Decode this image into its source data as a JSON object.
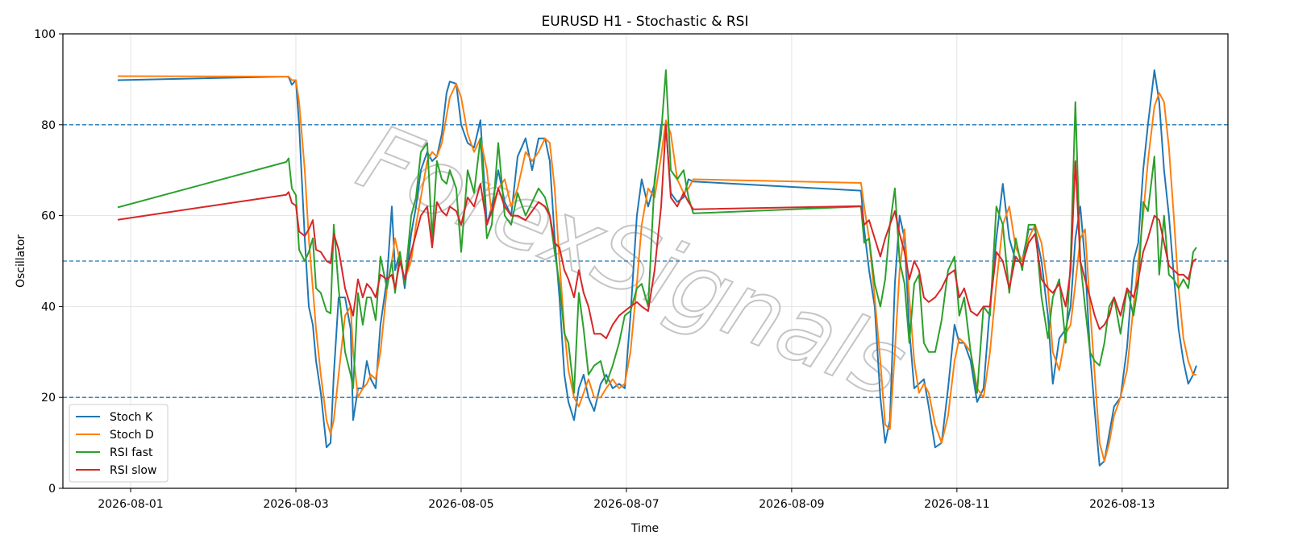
{
  "chart_data": {
    "type": "line",
    "title": "EURUSD H1 - Stochastic & RSI",
    "xlabel": "Time",
    "ylabel": "Oscillator",
    "watermark": "ForexSignals",
    "x": [
      20665.844,
      20667.883,
      20667.912,
      20667.951,
      20668.0,
      20668.039,
      20668.107,
      20668.156,
      20668.205,
      20668.244,
      20668.302,
      20668.371,
      20668.42,
      20668.459,
      20668.517,
      20668.595,
      20668.663,
      20668.693,
      20668.751,
      20668.81,
      20668.859,
      20668.907,
      20668.966,
      20669.024,
      20669.102,
      20669.161,
      20669.2,
      20669.259,
      20669.317,
      20669.395,
      20669.454,
      20669.512,
      20669.59,
      20669.649,
      20669.707,
      20669.766,
      20669.824,
      20669.863,
      20669.941,
      20670.0,
      20670.078,
      20670.156,
      20670.234,
      20670.312,
      20670.371,
      20670.449,
      20670.527,
      20670.605,
      20670.683,
      20670.78,
      20670.859,
      20670.937,
      20671.015,
      20671.073,
      20671.132,
      20671.19,
      20671.249,
      20671.298,
      20671.366,
      20671.424,
      20671.483,
      20671.541,
      20671.61,
      20671.688,
      20671.756,
      20671.834,
      20671.912,
      20671.98,
      20672.049,
      20672.127,
      20672.185,
      20672.263,
      20672.341,
      20672.42,
      20672.478,
      20672.537,
      20672.615,
      20672.693,
      20672.751,
      20672.81,
      20674.839,
      20674.878,
      20674.937,
      20675.005,
      20675.073,
      20675.132,
      20675.19,
      20675.249,
      20675.307,
      20675.366,
      20675.424,
      20675.483,
      20675.541,
      20675.6,
      20675.659,
      20675.737,
      20675.815,
      20675.893,
      20675.971,
      20676.029,
      20676.088,
      20676.166,
      20676.244,
      20676.322,
      20676.4,
      20676.478,
      20676.556,
      20676.634,
      20676.712,
      20676.79,
      20676.868,
      20676.946,
      20677.024,
      20677.102,
      20677.161,
      20677.239,
      20677.317,
      20677.376,
      20677.434,
      20677.493,
      20677.551,
      20677.61,
      20677.668,
      20677.727,
      20677.785,
      20677.844,
      20677.902,
      20677.98,
      20678.059,
      20678.137,
      20678.195,
      20678.254,
      20678.312,
      20678.39,
      20678.449,
      20678.507,
      20678.566,
      20678.624,
      20678.683,
      20678.741,
      20678.8,
      20678.859,
      20678.898
    ],
    "series": [
      {
        "name": "Stoch K",
        "color": "#1f77b4",
        "values": [
          89.8,
          90.6,
          90.5,
          88.8,
          89.8,
          80,
          55,
          40,
          36,
          28,
          21,
          9,
          10,
          25,
          42,
          42,
          35,
          15,
          22,
          22,
          28,
          24,
          22,
          36,
          46,
          62,
          48,
          52,
          44,
          56,
          62,
          70,
          74,
          72,
          73,
          78,
          87,
          89.5,
          89,
          80,
          76,
          75,
          81,
          58,
          62,
          70,
          63,
          60,
          73,
          77,
          70,
          77,
          77,
          72,
          55,
          42,
          25,
          19,
          15,
          22,
          25,
          20,
          17,
          23,
          25,
          22,
          23,
          22,
          38,
          60,
          68,
          62,
          67,
          80,
          80,
          65,
          63,
          64,
          68,
          67.5,
          65.5,
          57,
          48,
          40,
          20,
          10,
          15,
          45,
          60,
          55,
          35,
          22,
          23,
          24,
          18,
          9,
          10,
          22,
          36,
          32,
          32,
          28,
          19,
          22,
          40,
          55,
          67,
          55,
          50,
          50,
          57,
          57,
          50,
          38,
          23,
          33,
          35,
          40,
          55,
          62,
          50,
          30,
          17,
          5,
          6,
          12,
          18,
          20,
          31,
          50,
          54,
          70,
          80,
          92,
          85,
          70,
          60,
          47,
          35,
          28,
          23,
          25,
          27
        ]
      },
      {
        "name": "Stoch D",
        "color": "#ff7f0e",
        "values": [
          90.7,
          90.6,
          90.6,
          89.8,
          89.8,
          85,
          70,
          55,
          44,
          35,
          25,
          15,
          12,
          15,
          25,
          38,
          40,
          30,
          20,
          22,
          23,
          25,
          24,
          30,
          44,
          50,
          55,
          50,
          46,
          50,
          58,
          64,
          72,
          74,
          73,
          76,
          82,
          86,
          89,
          86,
          78,
          74,
          77,
          70,
          60,
          66,
          68,
          62,
          66,
          74,
          72,
          74,
          77,
          76,
          66,
          50,
          35,
          26,
          20,
          18,
          21,
          24,
          20,
          20,
          22,
          24,
          22,
          23,
          30,
          45,
          58,
          66,
          64,
          73,
          81,
          78,
          68,
          65,
          66,
          68,
          67.2,
          62,
          55,
          42,
          28,
          14,
          13,
          30,
          48,
          57,
          42,
          28,
          21,
          23,
          21,
          14,
          10,
          16,
          28,
          33,
          32,
          30,
          22,
          20,
          30,
          45,
          58,
          62,
          53,
          50,
          55,
          58,
          54,
          44,
          30,
          26,
          34,
          36,
          45,
          55,
          57,
          40,
          25,
          10,
          6,
          10,
          16,
          20,
          26,
          40,
          50,
          60,
          72,
          84,
          87,
          85,
          75,
          60,
          44,
          33,
          28,
          25,
          25
        ]
      },
      {
        "name": "RSI fast",
        "color": "#2ca02c",
        "values": [
          61.8,
          71.8,
          72.6,
          66,
          64.5,
          52.5,
          50,
          52,
          55,
          44,
          43,
          39,
          38.5,
          58,
          44,
          30,
          25,
          22,
          43,
          36,
          42,
          42,
          37,
          51,
          44,
          50,
          43,
          52,
          45,
          60,
          64,
          74,
          76,
          55,
          72,
          68,
          67,
          70,
          66,
          52,
          70,
          65,
          77,
          55,
          58,
          76,
          60,
          58,
          65,
          60,
          63,
          66,
          64,
          60,
          52,
          45,
          34,
          32,
          21,
          43,
          35,
          25,
          27,
          28,
          23,
          27,
          32,
          38,
          39,
          44,
          45,
          40,
          68,
          78,
          92,
          70,
          68,
          70,
          64,
          60.5,
          62,
          54,
          55,
          45,
          40,
          46,
          58,
          66,
          50,
          45,
          32,
          45,
          47,
          32,
          30,
          30,
          37,
          48,
          51,
          38,
          42,
          30,
          21,
          40,
          38,
          62,
          58,
          43,
          55,
          48,
          58,
          58,
          42,
          33,
          42,
          46,
          32,
          50,
          85,
          50,
          40,
          30,
          28,
          27,
          32,
          40,
          42,
          34,
          44,
          38,
          45,
          63,
          61,
          73,
          47,
          60,
          47,
          46,
          44,
          46,
          44,
          52,
          53
        ]
      },
      {
        "name": "RSI slow",
        "color": "#d62728",
        "values": [
          59.1,
          64.6,
          65.2,
          62.8,
          62.2,
          56.5,
          55.5,
          57,
          59,
          52.5,
          52,
          50,
          49.5,
          56,
          52.5,
          44,
          40,
          38,
          46,
          42,
          45,
          44,
          42,
          47,
          46,
          47,
          44,
          50,
          46,
          52,
          56,
          60,
          62,
          53,
          63,
          61,
          60,
          62,
          61,
          58,
          64,
          62,
          67,
          58,
          61,
          66,
          62,
          60,
          60,
          59,
          61,
          63,
          62,
          60,
          54,
          53,
          48,
          46,
          42,
          48,
          43,
          40,
          34,
          34,
          33,
          36,
          38,
          39,
          40,
          41,
          40,
          39,
          48,
          62,
          80,
          64,
          62,
          65,
          63,
          61.4,
          62.1,
          58,
          59,
          55,
          51,
          55,
          58,
          61,
          56,
          52,
          46,
          50,
          48,
          42,
          41,
          42,
          44,
          47,
          48,
          42,
          44,
          39,
          38,
          40,
          40,
          52,
          50,
          44,
          51,
          49,
          54,
          56,
          46,
          44,
          43,
          45,
          40,
          48,
          72,
          50,
          46,
          42,
          38,
          35,
          36,
          38,
          42,
          38,
          44,
          42,
          46,
          52,
          55,
          60,
          59,
          54,
          49,
          48,
          47,
          47,
          46,
          50,
          50.5
        ]
      }
    ],
    "hlines": [
      20,
      50,
      80
    ],
    "hline_color": "#1f77b4",
    "xlim": [
      20665.18,
      20679.28
    ],
    "xticks": [
      {
        "value": 20666,
        "label": "2026-08-01"
      },
      {
        "value": 20668,
        "label": "2026-08-03"
      },
      {
        "value": 20670,
        "label": "2026-08-05"
      },
      {
        "value": 20672,
        "label": "2026-08-07"
      },
      {
        "value": 20674,
        "label": "2026-08-09"
      },
      {
        "value": 20676,
        "label": "2026-08-11"
      },
      {
        "value": 20678,
        "label": "2026-08-13"
      }
    ],
    "ylim": [
      0,
      100
    ],
    "yticks": [
      0,
      20,
      40,
      60,
      80,
      100
    ],
    "grid": true,
    "legend": "lower left"
  }
}
